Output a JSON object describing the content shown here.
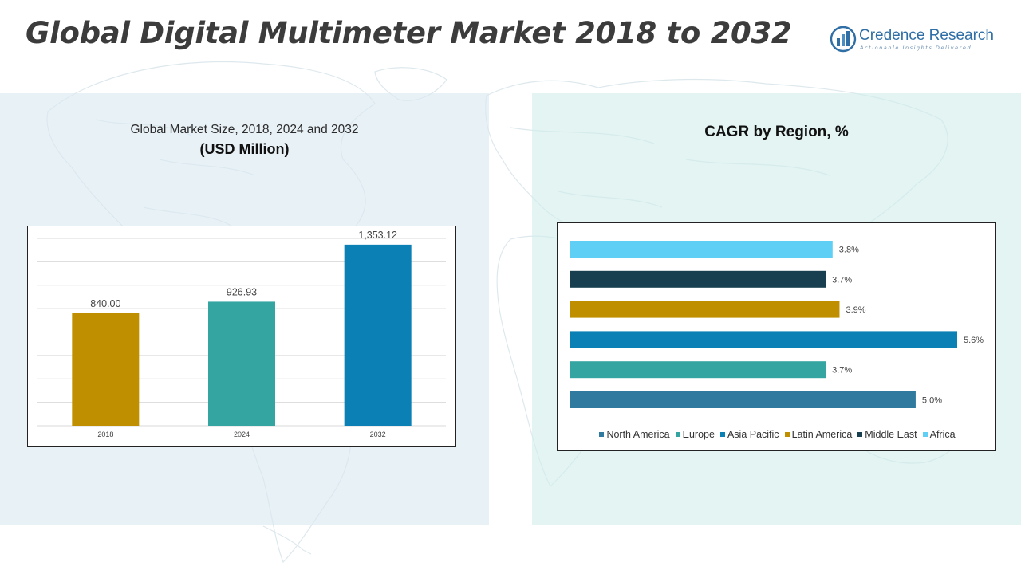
{
  "title": "Global Digital Multimeter Market 2018 to 2032",
  "logo": {
    "name": "Credence Research",
    "tagline": "Actionable Insights Delivered"
  },
  "left_panel": {
    "subtitle": "Global Market Size, 2018, 2024 and 2032",
    "unit": "(USD Million)"
  },
  "right_panel": {
    "title": "CAGR by Region, %"
  },
  "colors": {
    "gold": "#BF8F00",
    "teal": "#35A5A1",
    "blue": "#0A80B4",
    "steel": "#2F7A9E",
    "dark": "#173F4F",
    "sky": "#5FCFF5",
    "brand": "#2F6FA6"
  },
  "chart_data": [
    {
      "type": "bar",
      "title": "Global Market Size, 2018, 2024 and 2032",
      "ylabel": "USD Million",
      "categories": [
        "2018",
        "2024",
        "2032"
      ],
      "values": [
        840.0,
        926.93,
        1353.12
      ],
      "value_labels": [
        "840.00",
        "926.93",
        "1,353.12"
      ],
      "bar_colors": [
        "#BF8F00",
        "#35A5A1",
        "#0A80B4"
      ],
      "ylim": [
        0,
        1400
      ],
      "grid": true
    },
    {
      "type": "bar",
      "orientation": "horizontal",
      "title": "CAGR by Region, %",
      "categories": [
        "Africa",
        "Middle East",
        "Latin America",
        "Asia Pacific",
        "Europe",
        "North America"
      ],
      "values": [
        3.8,
        3.7,
        3.9,
        5.6,
        3.7,
        5.0
      ],
      "value_labels": [
        "3.8%",
        "3.7%",
        "3.9%",
        "5.6%",
        "3.7%",
        "5.0%"
      ],
      "bar_colors": [
        "#5FCFF5",
        "#173F4F",
        "#BF8F00",
        "#0A80B4",
        "#35A5A1",
        "#2F7A9E"
      ],
      "xlim": [
        0,
        5.6
      ],
      "legend": [
        {
          "name": "North America",
          "color": "#2F7A9E"
        },
        {
          "name": "Europe",
          "color": "#35A5A1"
        },
        {
          "name": "Asia Pacific",
          "color": "#0A80B4"
        },
        {
          "name": "Latin America",
          "color": "#BF8F00"
        },
        {
          "name": "Middle East",
          "color": "#173F4F"
        },
        {
          "name": "Africa",
          "color": "#5FCFF5"
        }
      ],
      "legend_position": "bottom"
    }
  ]
}
